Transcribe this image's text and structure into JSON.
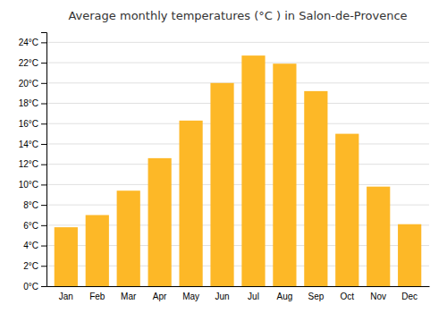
{
  "chart_data": {
    "type": "bar",
    "title": "Average monthly temperatures (°C ) in Salon-de-Provence",
    "categories": [
      "Jan",
      "Feb",
      "Mar",
      "Apr",
      "May",
      "Jun",
      "Jul",
      "Aug",
      "Sep",
      "Oct",
      "Nov",
      "Dec"
    ],
    "values": [
      5.8,
      7.0,
      9.4,
      12.6,
      16.3,
      20.0,
      22.7,
      21.9,
      19.2,
      15.0,
      9.8,
      6.1
    ],
    "color": "#FDB827",
    "ylim": [
      0,
      25
    ],
    "yticks": [
      {
        "value": 0,
        "label": "0°C"
      },
      {
        "value": 2,
        "label": "2°C"
      },
      {
        "value": 4,
        "label": "4°C"
      },
      {
        "value": 6,
        "label": "6°C"
      },
      {
        "value": 8,
        "label": "8°C"
      },
      {
        "value": 10,
        "label": "10°C"
      },
      {
        "value": 12,
        "label": "12°C"
      },
      {
        "value": 14,
        "label": "14°C"
      },
      {
        "value": 16,
        "label": "16°C"
      },
      {
        "value": 18,
        "label": "18°C"
      },
      {
        "value": 20,
        "label": "20°C"
      },
      {
        "value": 22,
        "label": "22°C"
      },
      {
        "value": 24,
        "label": "24°C"
      }
    ],
    "grid": true
  }
}
